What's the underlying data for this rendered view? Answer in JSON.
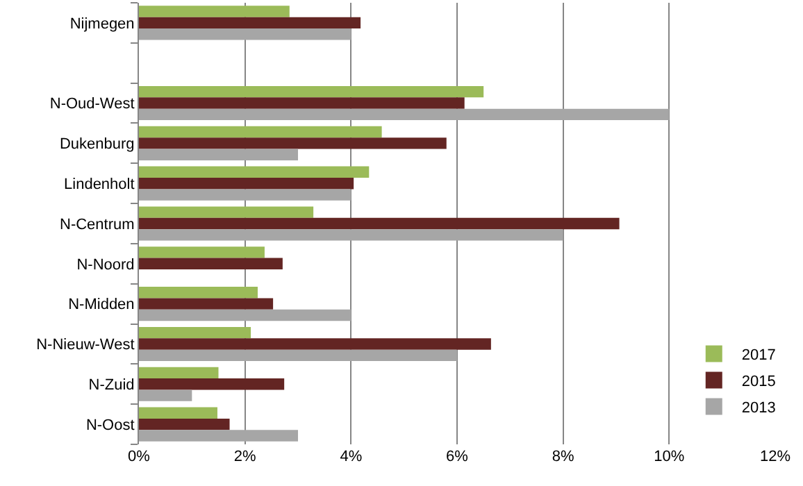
{
  "chart_data": {
    "type": "bar",
    "orientation": "horizontal",
    "categories": [
      "Nijmegen",
      null,
      "N-Oud-West",
      "Dukenburg",
      "Lindenholt",
      "N-Centrum",
      "N-Noord",
      "N-Midden",
      "N-Nieuw-West",
      "N-Zuid",
      "N-Oost"
    ],
    "series": [
      {
        "name": "2017",
        "color": "#9bbb59",
        "values": [
          2.84,
          null,
          6.5,
          4.58,
          4.34,
          3.29,
          2.37,
          2.24,
          2.11,
          1.5,
          1.48
        ]
      },
      {
        "name": "2015",
        "color": "#632523",
        "values": [
          4.18,
          null,
          6.14,
          5.8,
          4.05,
          9.06,
          2.71,
          2.53,
          6.64,
          2.74,
          1.71
        ]
      },
      {
        "name": "2013",
        "color": "#a6a6a6",
        "values": [
          4.0,
          null,
          10.0,
          3.0,
          4.0,
          8.0,
          null,
          4.0,
          6.0,
          1.0,
          3.0
        ]
      }
    ],
    "xlim": [
      0,
      12
    ],
    "xticks": [
      {
        "value": 0,
        "label": "0%"
      },
      {
        "value": 2,
        "label": "2%"
      },
      {
        "value": 4,
        "label": "4%"
      },
      {
        "value": 6,
        "label": "6%"
      },
      {
        "value": 8,
        "label": "8%"
      },
      {
        "value": 10,
        "label": "10%"
      },
      {
        "value": 12,
        "label": "12%"
      }
    ],
    "grid": "x",
    "legend": "bottom right"
  }
}
